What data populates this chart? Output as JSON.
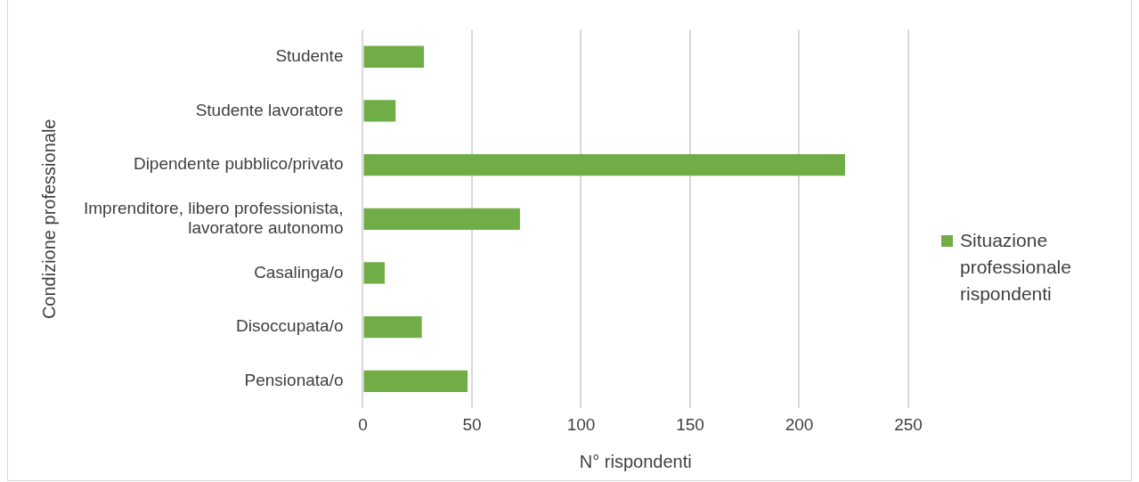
{
  "chart_data": {
    "type": "bar",
    "orientation": "horizontal",
    "xlabel": "N° rispondenti",
    "ylabel": "Condizione professionale",
    "categories": [
      "Studente",
      "Studente lavoratore",
      "Dipendente pubblico/privato",
      "Imprenditore, libero professionista, lavoratore autonomo",
      "Casalinga/o",
      "Disoccupata/o",
      "Pensionata/o"
    ],
    "series": [
      {
        "name": "Situazione professionale rispondenti",
        "color": "#70ad47",
        "values": [
          28,
          15,
          221,
          72,
          10,
          27,
          48
        ]
      }
    ],
    "xlim": [
      0,
      250
    ],
    "xticks": [
      0,
      50,
      100,
      150,
      200,
      250
    ],
    "grid": "x",
    "legend": "right"
  }
}
